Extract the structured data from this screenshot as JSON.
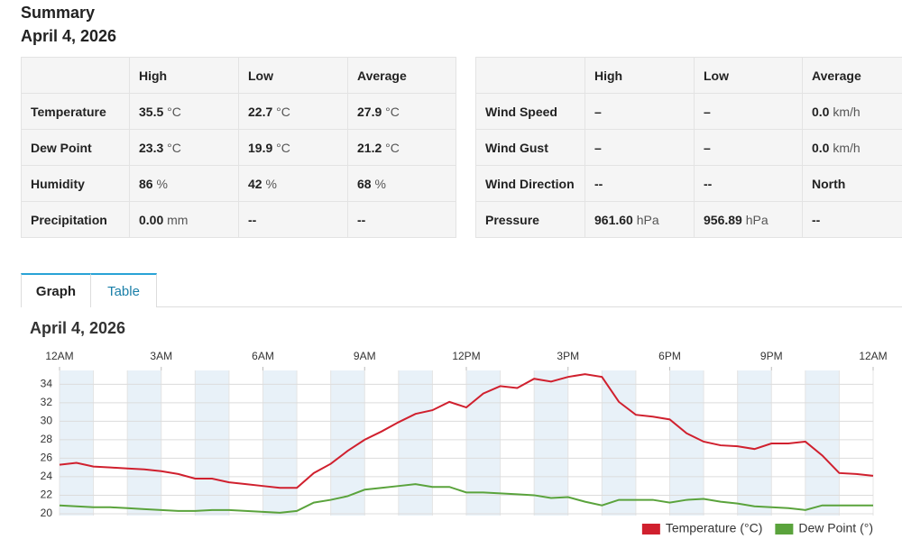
{
  "header": {
    "title": "Summary",
    "date": "April 4, 2026"
  },
  "tables": [
    {
      "columns": [
        "High",
        "Low",
        "Average"
      ],
      "rows": [
        {
          "label": "Temperature",
          "cells": [
            {
              "value": "35.5",
              "unit": "°C"
            },
            {
              "value": "22.7",
              "unit": "°C"
            },
            {
              "value": "27.9",
              "unit": "°C"
            }
          ]
        },
        {
          "label": "Dew Point",
          "cells": [
            {
              "value": "23.3",
              "unit": "°C"
            },
            {
              "value": "19.9",
              "unit": "°C"
            },
            {
              "value": "21.2",
              "unit": "°C"
            }
          ]
        },
        {
          "label": "Humidity",
          "cells": [
            {
              "value": "86",
              "unit": "%"
            },
            {
              "value": "42",
              "unit": "%"
            },
            {
              "value": "68",
              "unit": "%"
            }
          ]
        },
        {
          "label": "Precipitation",
          "cells": [
            {
              "value": "0.00",
              "unit": "mm"
            },
            {
              "value": "--"
            },
            {
              "value": "--"
            }
          ]
        }
      ]
    },
    {
      "columns": [
        "High",
        "Low",
        "Average"
      ],
      "rows": [
        {
          "label": "Wind Speed",
          "cells": [
            {
              "value": "–"
            },
            {
              "value": "–"
            },
            {
              "value": "0.0",
              "unit": "km/h"
            }
          ]
        },
        {
          "label": "Wind Gust",
          "cells": [
            {
              "value": "–"
            },
            {
              "value": "–"
            },
            {
              "value": "0.0",
              "unit": "km/h"
            }
          ]
        },
        {
          "label": "Wind Direction",
          "cells": [
            {
              "value": "--"
            },
            {
              "value": "--"
            },
            {
              "value": "North"
            }
          ]
        },
        {
          "label": "Pressure",
          "cells": [
            {
              "value": "961.60",
              "unit": "hPa"
            },
            {
              "value": "956.89",
              "unit": "hPa"
            },
            {
              "value": "--"
            }
          ]
        }
      ]
    }
  ],
  "tabs": [
    "Graph",
    "Table"
  ],
  "chart_data": {
    "type": "line",
    "title": "April 4, 2026",
    "x": [
      0,
      0.5,
      1,
      1.5,
      2,
      2.5,
      3,
      3.5,
      4,
      4.5,
      5,
      5.5,
      6,
      6.5,
      7,
      7.5,
      8,
      8.5,
      9,
      9.5,
      10,
      10.5,
      11,
      11.5,
      12,
      12.5,
      13,
      13.5,
      14,
      14.5,
      15,
      15.5,
      16,
      16.5,
      17,
      17.5,
      18,
      18.5,
      19,
      19.5,
      20,
      20.5,
      21,
      21.5,
      22,
      22.5,
      23,
      23.5,
      24
    ],
    "xlim": [
      0,
      24
    ],
    "xticks": [
      {
        "value": 0,
        "label": "12AM"
      },
      {
        "value": 3,
        "label": "3AM"
      },
      {
        "value": 6,
        "label": "6AM"
      },
      {
        "value": 9,
        "label": "9AM"
      },
      {
        "value": 12,
        "label": "12PM"
      },
      {
        "value": 15,
        "label": "3PM"
      },
      {
        "value": 18,
        "label": "6PM"
      },
      {
        "value": 21,
        "label": "9PM"
      },
      {
        "value": 24,
        "label": "12AM"
      }
    ],
    "ylim": [
      19.8,
      35.5
    ],
    "yticks": [
      20,
      22,
      24,
      26,
      28,
      30,
      32,
      34
    ],
    "grid": true,
    "legend": "bottom-right",
    "series": [
      {
        "name": "Temperature (°C)",
        "color": "#d0202e",
        "values": [
          25.3,
          25.5,
          25.1,
          25.0,
          24.9,
          24.8,
          24.6,
          24.3,
          23.8,
          23.8,
          23.4,
          23.2,
          23.0,
          22.8,
          22.8,
          24.4,
          25.4,
          26.8,
          28.0,
          28.9,
          29.9,
          30.8,
          31.2,
          32.1,
          31.5,
          33.0,
          33.8,
          33.6,
          34.6,
          34.3,
          34.8,
          35.1,
          34.8,
          32.1,
          30.7,
          30.5,
          30.2,
          28.7,
          27.8,
          27.4,
          27.3,
          27.0,
          27.6,
          27.6,
          27.8,
          26.3,
          24.4,
          24.3,
          24.1
        ]
      },
      {
        "name": "Dew Point (°)",
        "color": "#5aa33c",
        "values": [
          20.9,
          20.8,
          20.7,
          20.7,
          20.6,
          20.5,
          20.4,
          20.3,
          20.3,
          20.4,
          20.4,
          20.3,
          20.2,
          20.1,
          20.3,
          21.2,
          21.5,
          21.9,
          22.6,
          22.8,
          23.0,
          23.2,
          22.9,
          22.9,
          22.3,
          22.3,
          22.2,
          22.1,
          22.0,
          21.7,
          21.8,
          21.3,
          20.9,
          21.5,
          21.5,
          21.5,
          21.2,
          21.5,
          21.6,
          21.3,
          21.1,
          20.8,
          20.7,
          20.6,
          20.4,
          20.9,
          20.9,
          20.9,
          20.9
        ]
      }
    ]
  }
}
